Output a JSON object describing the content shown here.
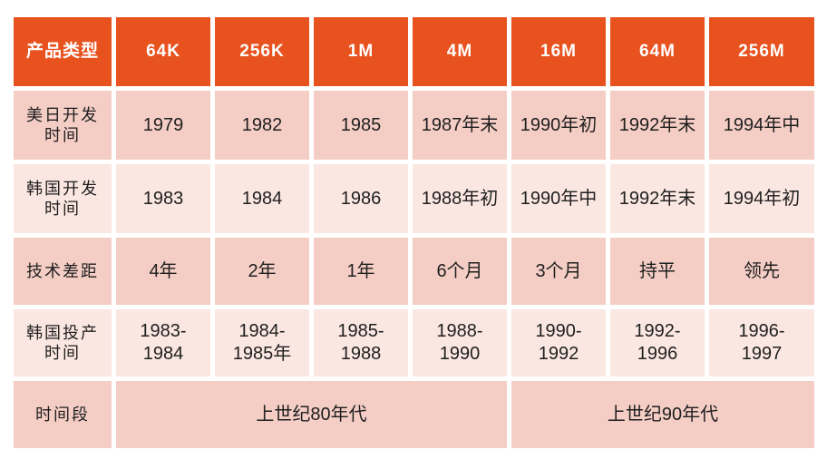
{
  "chart_data": {
    "type": "table",
    "columns": [
      "产品类型",
      "64K",
      "256K",
      "1M",
      "4M",
      "16M",
      "64M",
      "256M"
    ],
    "rows": [
      {
        "label": "美日开发时间",
        "values": [
          "1979",
          "1982",
          "1985",
          "1987年末",
          "1990年初",
          "1992年末",
          "1994年中"
        ]
      },
      {
        "label": "韩国开发时间",
        "values": [
          "1983",
          "1984",
          "1986",
          "1988年初",
          "1990年中",
          "1992年末",
          "1994年初"
        ]
      },
      {
        "label": "技术差距",
        "values": [
          "4年",
          "2年",
          "1年",
          "6个月",
          "3个月",
          "持平",
          "领先"
        ]
      },
      {
        "label": "韩国投产时间",
        "values": [
          "1983-1984",
          "1984-1985年",
          "1985-1988",
          "1988-1990",
          "1990-1992",
          "1992-1996",
          "1996-1997"
        ]
      },
      {
        "label": "时间段",
        "values": [
          "上世纪80年代",
          "上世纪90年代"
        ],
        "colspans": [
          4,
          3
        ]
      }
    ],
    "legend": [],
    "grid": "white 5px separators between cells"
  },
  "colors": {
    "header_bg": "#E8521F",
    "header_text": "#FFFFFF",
    "row_odd_bg": "#F4CDC5",
    "row_even_bg": "#FBE7E2",
    "cell_text": "#1F1F1F",
    "background": "#FFFFFF",
    "separator": "#FFFFFF"
  },
  "ui": {
    "header": [
      "产品类型",
      "64K",
      "256K",
      "1M",
      "4M",
      "16M",
      "64M",
      "256M"
    ],
    "rows": [
      {
        "label": "美日开发\n时间",
        "cells": [
          "1979",
          "1982",
          "1985",
          "1987年末",
          "1990年初",
          "1992年末",
          "1994年中"
        ]
      },
      {
        "label": "韩国开发\n时间",
        "cells": [
          "1983",
          "1984",
          "1986",
          "1988年初",
          "1990年中",
          "1992年末",
          "1994年初"
        ]
      },
      {
        "label": "技术差距",
        "cells": [
          "4年",
          "2年",
          "1年",
          "6个月",
          "3个月",
          "持平",
          "领先"
        ]
      },
      {
        "label": "韩国投产\n时间",
        "cells": [
          "1983-\n1984",
          "1984-\n1985年",
          "1985-\n1988",
          "1988-\n1990",
          "1990-\n1992",
          "1992-\n1996",
          "1996-\n1997"
        ]
      }
    ],
    "footer": {
      "label": "时间段",
      "spans": [
        {
          "text": "上世纪80年代",
          "colspan": 4
        },
        {
          "text": "上世纪90年代",
          "colspan": 3
        }
      ]
    }
  }
}
